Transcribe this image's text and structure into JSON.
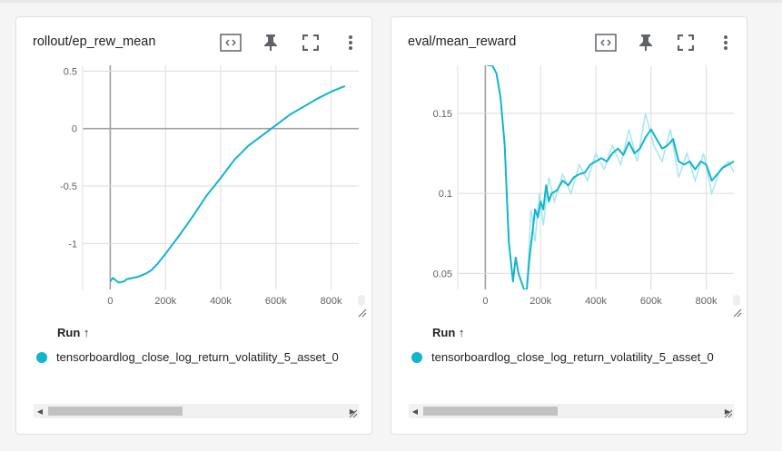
{
  "colors": {
    "series": "#12b5cb",
    "series_raw": "#a8e6f0",
    "icon": "#5f6368",
    "grid": "#dcdcdc",
    "zero_line": "#a0a0a0"
  },
  "cards": [
    {
      "title": "rollout/ep_rew_mean",
      "toolbar": [
        "fit-domain-icon",
        "pin-icon",
        "fullscreen-icon",
        "more-vert-icon"
      ],
      "run_header": "Run ↑",
      "run_label": "tensorboardlog_close_log_return_volatility_5_asset_0",
      "chart_data": {
        "type": "line",
        "title": "rollout/ep_rew_mean",
        "x_ticks": [
          "0",
          "200k",
          "400k",
          "600k",
          "800k"
        ],
        "y_ticks": [
          "0.5",
          "0",
          "-0.5",
          "-1"
        ],
        "xlim": [
          -100000,
          900000
        ],
        "ylim": [
          -1.4,
          0.55
        ],
        "grid": true,
        "series": [
          {
            "values": [
              [
                0,
                -1.33
              ],
              [
                10000,
                -1.3
              ],
              [
                20000,
                -1.32
              ],
              [
                30000,
                -1.34
              ],
              [
                50000,
                -1.33
              ],
              [
                60000,
                -1.31
              ],
              [
                100000,
                -1.29
              ],
              [
                130000,
                -1.26
              ],
              [
                150000,
                -1.23
              ],
              [
                170000,
                -1.18
              ],
              [
                200000,
                -1.09
              ],
              [
                250000,
                -0.93
              ],
              [
                300000,
                -0.76
              ],
              [
                350000,
                -0.58
              ],
              [
                400000,
                -0.43
              ],
              [
                450000,
                -0.27
              ],
              [
                500000,
                -0.15
              ],
              [
                550000,
                -0.06
              ],
              [
                600000,
                0.03
              ],
              [
                650000,
                0.12
              ],
              [
                700000,
                0.19
              ],
              [
                750000,
                0.26
              ],
              [
                800000,
                0.32
              ],
              [
                850000,
                0.37
              ]
            ]
          }
        ]
      }
    },
    {
      "title": "eval/mean_reward",
      "toolbar": [
        "fit-domain-icon",
        "pin-icon",
        "fullscreen-icon",
        "more-vert-icon"
      ],
      "run_header": "Run ↑",
      "run_label": "tensorboardlog_close_log_return_volatility_5_asset_0",
      "chart_data": {
        "type": "line",
        "title": "eval/mean_reward",
        "x_ticks": [
          "0",
          "200k",
          "400k",
          "600k",
          "800k"
        ],
        "y_ticks": [
          "0.15",
          "0.1",
          "0.05"
        ],
        "xlim": [
          -100000,
          900000
        ],
        "ylim": [
          0.04,
          0.18
        ],
        "grid": true,
        "series": [
          {
            "values": [
              [
                0,
                0.185
              ],
              [
                10000,
                0.18
              ],
              [
                25000,
                0.18
              ],
              [
                40000,
                0.175
              ],
              [
                55000,
                0.16
              ],
              [
                70000,
                0.13
              ],
              [
                85000,
                0.07
              ],
              [
                100000,
                0.045
              ],
              [
                110000,
                0.06
              ],
              [
                120000,
                0.05
              ],
              [
                130000,
                0.045
              ],
              [
                140000,
                0.04
              ],
              [
                150000,
                0.04
              ],
              [
                160000,
                0.06
              ],
              [
                170000,
                0.075
              ],
              [
                180000,
                0.09
              ],
              [
                190000,
                0.085
              ],
              [
                200000,
                0.095
              ],
              [
                210000,
                0.09
              ],
              [
                220000,
                0.105
              ],
              [
                230000,
                0.095
              ],
              [
                240000,
                0.1
              ],
              [
                260000,
                0.102
              ],
              [
                280000,
                0.108
              ],
              [
                300000,
                0.105
              ],
              [
                320000,
                0.11
              ],
              [
                340000,
                0.112
              ],
              [
                360000,
                0.113
              ],
              [
                380000,
                0.118
              ],
              [
                400000,
                0.12
              ],
              [
                420000,
                0.122
              ],
              [
                440000,
                0.12
              ],
              [
                460000,
                0.125
              ],
              [
                480000,
                0.128
              ],
              [
                500000,
                0.124
              ],
              [
                520000,
                0.132
              ],
              [
                540000,
                0.125
              ],
              [
                560000,
                0.128
              ],
              [
                580000,
                0.135
              ],
              [
                600000,
                0.14
              ],
              [
                620000,
                0.134
              ],
              [
                640000,
                0.128
              ],
              [
                660000,
                0.13
              ],
              [
                680000,
                0.134
              ],
              [
                700000,
                0.12
              ],
              [
                720000,
                0.118
              ],
              [
                740000,
                0.12
              ],
              [
                760000,
                0.115
              ],
              [
                780000,
                0.12
              ],
              [
                800000,
                0.118
              ],
              [
                820000,
                0.108
              ],
              [
                840000,
                0.112
              ],
              [
                860000,
                0.116
              ],
              [
                880000,
                0.118
              ],
              [
                900000,
                0.12
              ],
              [
                920000,
                0.122
              ],
              [
                940000,
                0.124
              ]
            ]
          }
        ],
        "raw_series": [
          {
            "values": [
              [
                150000,
                0.04
              ],
              [
                165000,
                0.09
              ],
              [
                180000,
                0.07
              ],
              [
                195000,
                0.1
              ],
              [
                210000,
                0.08
              ],
              [
                230000,
                0.11
              ],
              [
                250000,
                0.095
              ],
              [
                280000,
                0.112
              ],
              [
                310000,
                0.1
              ],
              [
                340000,
                0.118
              ],
              [
                370000,
                0.108
              ],
              [
                400000,
                0.125
              ],
              [
                430000,
                0.115
              ],
              [
                460000,
                0.13
              ],
              [
                490000,
                0.118
              ],
              [
                520000,
                0.14
              ],
              [
                550000,
                0.12
              ],
              [
                580000,
                0.15
              ],
              [
                610000,
                0.13
              ],
              [
                640000,
                0.12
              ],
              [
                670000,
                0.14
              ],
              [
                700000,
                0.11
              ],
              [
                730000,
                0.125
              ],
              [
                760000,
                0.108
              ],
              [
                790000,
                0.125
              ],
              [
                820000,
                0.1
              ],
              [
                850000,
                0.115
              ],
              [
                880000,
                0.12
              ],
              [
                910000,
                0.11
              ],
              [
                940000,
                0.13
              ]
            ]
          }
        ]
      }
    }
  ]
}
